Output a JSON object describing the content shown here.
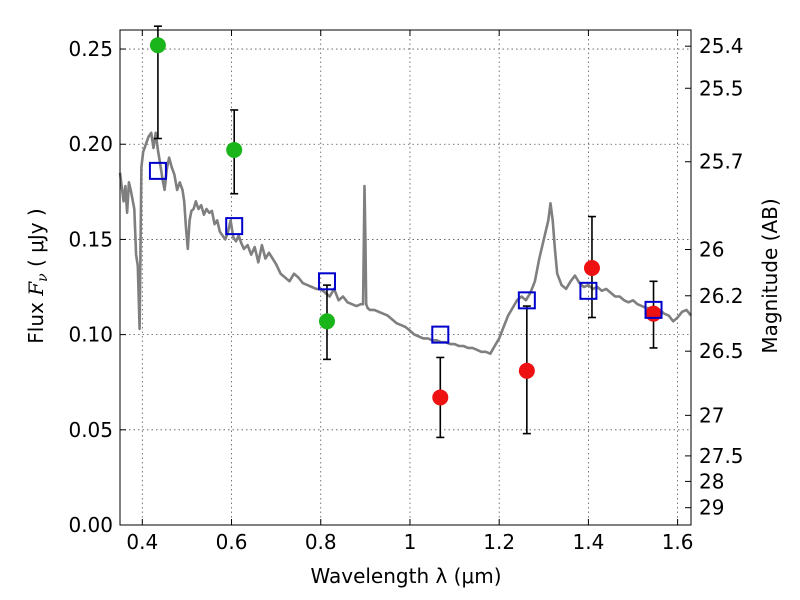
{
  "chart_data": {
    "type": "scatter",
    "xlabel": "Wavelength  λ (μm)",
    "ylabel": "Flux  F_ν  ( μJy )",
    "ylabel_parts": {
      "pre": "Flux ",
      "italic": "F",
      "sub": "ν",
      "post": " ( μJy )"
    },
    "y2label": "Magnitude (AB)",
    "xlim": [
      0.35,
      1.63
    ],
    "ylim": [
      0.0,
      0.26
    ],
    "grid": true,
    "x_ticks": [
      0.4,
      0.6,
      0.8,
      1.0,
      1.2,
      1.4,
      1.6
    ],
    "x_tick_labels": [
      "0.4",
      "0.6",
      "0.8",
      "1",
      "1.2",
      "1.4",
      "1.6"
    ],
    "y_ticks": [
      0.0,
      0.05,
      0.1,
      0.15,
      0.2,
      0.25
    ],
    "y_tick_labels": [
      "0.00",
      "0.05",
      "0.10",
      "0.15",
      "0.20",
      "0.25"
    ],
    "y2_ticks": [
      {
        "label": "25.4",
        "flux": 0.2515
      },
      {
        "label": "25.5",
        "flux": 0.2294
      },
      {
        "label": "25.7",
        "flux": 0.1908
      },
      {
        "label": "26",
        "flux": 0.1447
      },
      {
        "label": "26.2",
        "flux": 0.1204
      },
      {
        "label": "26.5",
        "flux": 0.0913
      },
      {
        "label": "27",
        "flux": 0.0576
      },
      {
        "label": "27.5",
        "flux": 0.0363
      },
      {
        "label": "28",
        "flux": 0.0229
      },
      {
        "label": "29",
        "flux": 0.0091
      }
    ],
    "series": [
      {
        "marker": "circle",
        "color": "#1ab51a",
        "points": [
          {
            "x": 0.435,
            "y": 0.252,
            "lo": 0.203,
            "hi": 0.262
          },
          {
            "x": 0.606,
            "y": 0.197,
            "lo": 0.174,
            "hi": 0.218
          },
          {
            "x": 0.814,
            "y": 0.107,
            "lo": 0.087,
            "hi": 0.126
          }
        ]
      },
      {
        "marker": "circle",
        "color": "#ee1111",
        "points": [
          {
            "x": 1.068,
            "y": 0.067,
            "lo": 0.046,
            "hi": 0.088
          },
          {
            "x": 1.262,
            "y": 0.081,
            "lo": 0.048,
            "hi": 0.115
          },
          {
            "x": 1.408,
            "y": 0.135,
            "lo": 0.109,
            "hi": 0.162
          },
          {
            "x": 1.546,
            "y": 0.111,
            "lo": 0.093,
            "hi": 0.128
          }
        ]
      },
      {
        "marker": "open-square",
        "color": "#0000cc",
        "points": [
          {
            "x": 0.435,
            "y": 0.186
          },
          {
            "x": 0.606,
            "y": 0.157
          },
          {
            "x": 0.814,
            "y": 0.128
          },
          {
            "x": 1.068,
            "y": 0.1
          },
          {
            "x": 1.262,
            "y": 0.118
          },
          {
            "x": 1.4,
            "y": 0.123
          },
          {
            "x": 1.546,
            "y": 0.113
          }
        ]
      },
      {
        "marker": "line",
        "color": "#7f7f7f",
        "x": [
          0.35,
          0.358,
          0.362,
          0.366,
          0.37,
          0.374,
          0.378,
          0.382,
          0.386,
          0.39,
          0.394,
          0.398,
          0.402,
          0.408,
          0.414,
          0.42,
          0.425,
          0.43,
          0.435,
          0.44,
          0.445,
          0.45,
          0.455,
          0.46,
          0.466,
          0.472,
          0.478,
          0.484,
          0.49,
          0.494,
          0.498,
          0.502,
          0.506,
          0.51,
          0.515,
          0.52,
          0.526,
          0.532,
          0.538,
          0.544,
          0.55,
          0.556,
          0.562,
          0.568,
          0.574,
          0.58,
          0.586,
          0.592,
          0.598,
          0.604,
          0.61,
          0.616,
          0.622,
          0.628,
          0.636,
          0.644,
          0.652,
          0.66,
          0.668,
          0.676,
          0.684,
          0.692,
          0.7,
          0.71,
          0.72,
          0.73,
          0.74,
          0.75,
          0.76,
          0.77,
          0.78,
          0.79,
          0.8,
          0.81,
          0.82,
          0.83,
          0.84,
          0.85,
          0.86,
          0.87,
          0.88,
          0.89,
          0.895,
          0.898,
          0.9,
          0.902,
          0.905,
          0.91,
          0.92,
          0.93,
          0.94,
          0.95,
          0.96,
          0.97,
          0.98,
          0.99,
          1.0,
          1.01,
          1.02,
          1.03,
          1.04,
          1.05,
          1.06,
          1.07,
          1.08,
          1.09,
          1.1,
          1.11,
          1.12,
          1.13,
          1.14,
          1.15,
          1.16,
          1.17,
          1.18,
          1.19,
          1.2,
          1.21,
          1.22,
          1.23,
          1.24,
          1.25,
          1.26,
          1.27,
          1.28,
          1.29,
          1.3,
          1.31,
          1.315,
          1.32,
          1.325,
          1.33,
          1.34,
          1.35,
          1.36,
          1.37,
          1.38,
          1.39,
          1.4,
          1.41,
          1.42,
          1.43,
          1.44,
          1.45,
          1.46,
          1.47,
          1.48,
          1.49,
          1.5,
          1.51,
          1.52,
          1.53,
          1.54,
          1.55,
          1.56,
          1.57,
          1.58,
          1.59,
          1.6,
          1.61,
          1.62,
          1.63
        ],
        "y": [
          0.185,
          0.17,
          0.178,
          0.164,
          0.18,
          0.176,
          0.171,
          0.166,
          0.142,
          0.136,
          0.103,
          0.188,
          0.196,
          0.2,
          0.204,
          0.206,
          0.198,
          0.206,
          0.197,
          0.19,
          0.182,
          0.176,
          0.187,
          0.193,
          0.188,
          0.184,
          0.176,
          0.18,
          0.176,
          0.17,
          0.156,
          0.145,
          0.16,
          0.165,
          0.166,
          0.17,
          0.166,
          0.168,
          0.163,
          0.166,
          0.164,
          0.165,
          0.158,
          0.16,
          0.154,
          0.152,
          0.15,
          0.154,
          0.16,
          0.151,
          0.149,
          0.152,
          0.148,
          0.145,
          0.147,
          0.142,
          0.146,
          0.138,
          0.147,
          0.14,
          0.143,
          0.14,
          0.137,
          0.132,
          0.13,
          0.128,
          0.132,
          0.13,
          0.127,
          0.126,
          0.125,
          0.124,
          0.124,
          0.122,
          0.12,
          0.124,
          0.118,
          0.12,
          0.117,
          0.116,
          0.115,
          0.116,
          0.116,
          0.178,
          0.15,
          0.116,
          0.114,
          0.113,
          0.113,
          0.112,
          0.111,
          0.11,
          0.108,
          0.106,
          0.105,
          0.104,
          0.102,
          0.1,
          0.099,
          0.098,
          0.098,
          0.097,
          0.097,
          0.096,
          0.096,
          0.095,
          0.095,
          0.094,
          0.094,
          0.093,
          0.093,
          0.092,
          0.091,
          0.091,
          0.09,
          0.094,
          0.098,
          0.104,
          0.11,
          0.114,
          0.118,
          0.12,
          0.118,
          0.122,
          0.128,
          0.14,
          0.15,
          0.16,
          0.169,
          0.16,
          0.145,
          0.132,
          0.126,
          0.124,
          0.128,
          0.131,
          0.127,
          0.125,
          0.126,
          0.124,
          0.125,
          0.123,
          0.124,
          0.122,
          0.12,
          0.12,
          0.118,
          0.117,
          0.118,
          0.116,
          0.115,
          0.114,
          0.114,
          0.112,
          0.113,
          0.111,
          0.11,
          0.107,
          0.109,
          0.112,
          0.113,
          0.11
        ]
      }
    ]
  }
}
